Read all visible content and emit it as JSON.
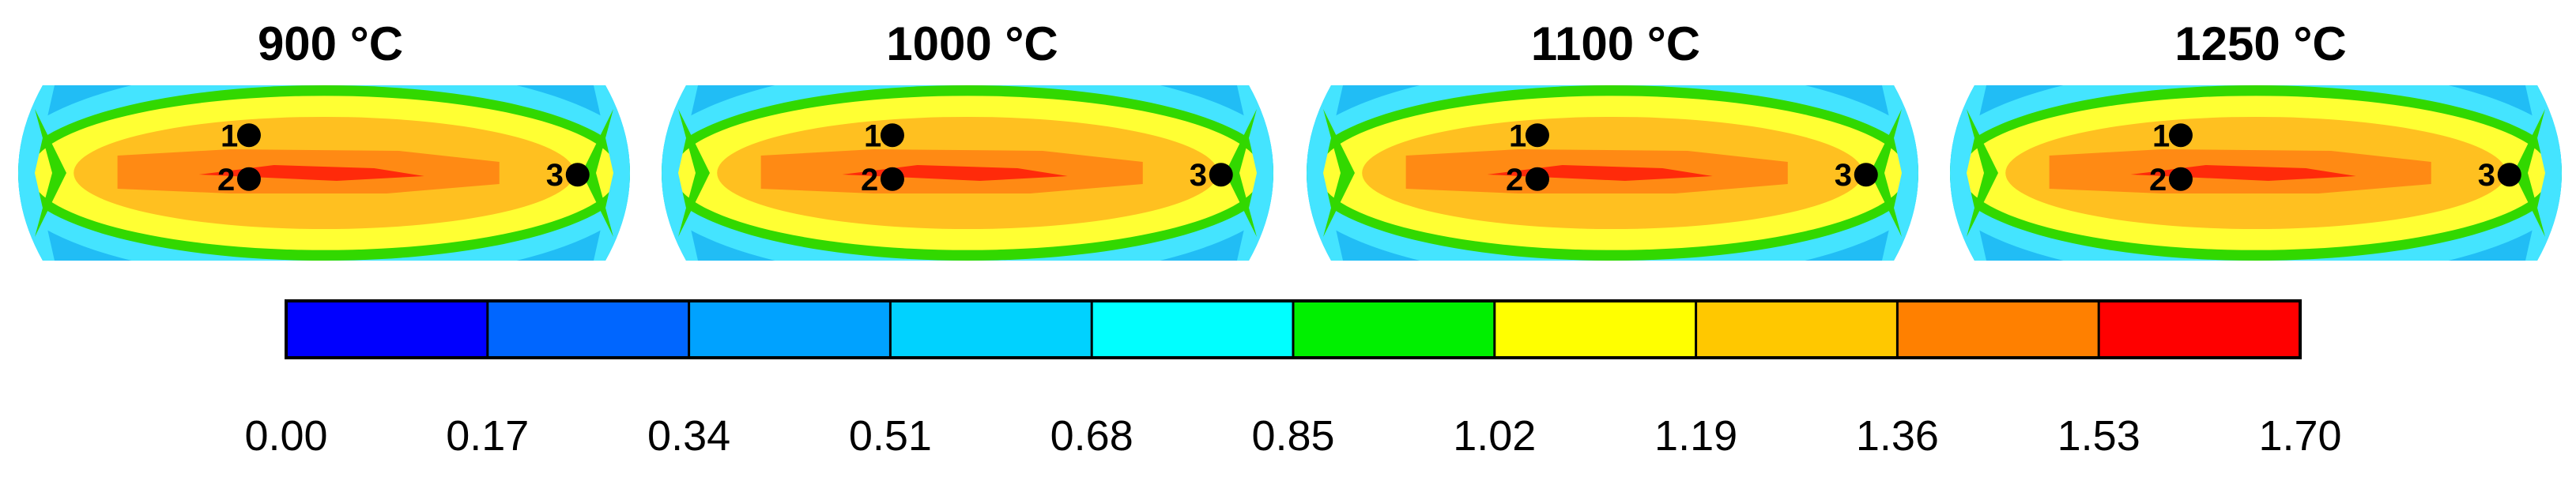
{
  "panels": [
    {
      "title": "900 °C",
      "points": [
        "1",
        "2",
        "3"
      ]
    },
    {
      "title": "1000 °C",
      "points": [
        "1",
        "2",
        "3"
      ]
    },
    {
      "title": "1100 °C",
      "points": [
        "1",
        "2",
        "3"
      ]
    },
    {
      "title": "1250 °C",
      "points": [
        "1",
        "2",
        "3"
      ]
    }
  ],
  "colorbar": {
    "ticks": [
      "0.00",
      "0.17",
      "0.34",
      "0.51",
      "0.68",
      "0.85",
      "1.02",
      "1.19",
      "1.36",
      "1.53",
      "1.70"
    ],
    "colors": [
      "#0000ff",
      "#0066ff",
      "#00a2ff",
      "#00d2ff",
      "#00ffff",
      "#00f000",
      "#ffff00",
      "#ffc800",
      "#ff8000",
      "#ff0000"
    ]
  },
  "field_colors": {
    "edge": "#44e4ff",
    "band1": "#9fe060",
    "band2": "#ffff33",
    "band3": "#ffc020",
    "core": "#ff8a14",
    "hot": "#ff2a0a",
    "outer_edge": "#21bdf5",
    "green": "#32d800"
  }
}
